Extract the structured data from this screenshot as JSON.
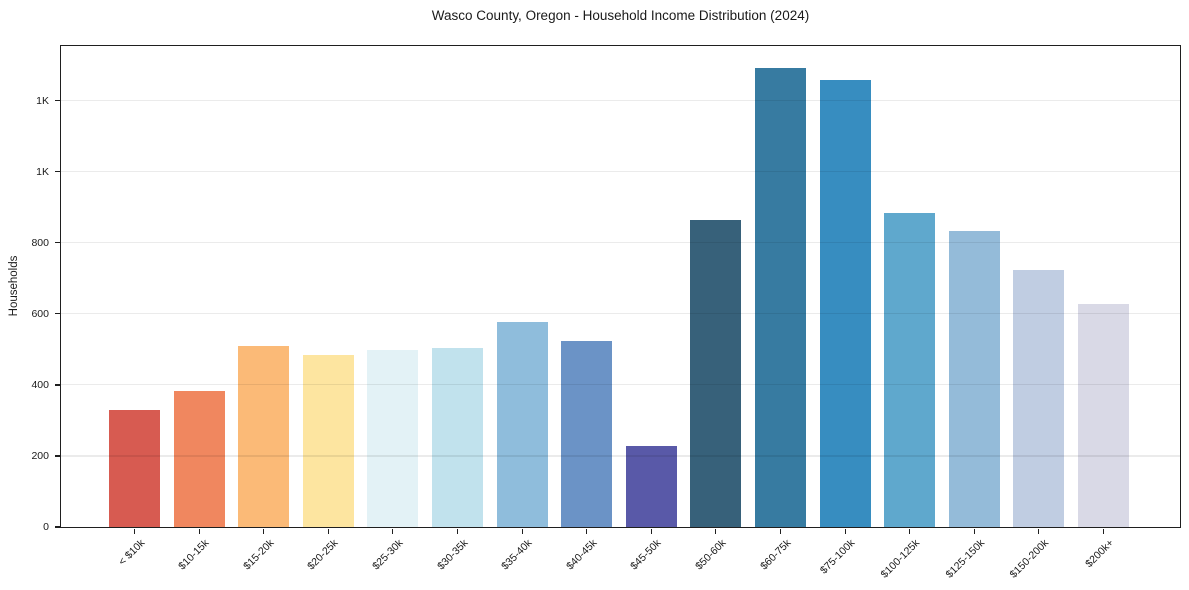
{
  "chart_data": {
    "type": "bar",
    "title": "Wasco County, Oregon - Household Income Distribution (2024)",
    "xlabel": "",
    "ylabel": "Households",
    "categories": [
      "< $10k",
      "$10-15k",
      "$15-20k",
      "$20-25k",
      "$25-30k",
      "$30-35k",
      "$35-40k",
      "$40-45k",
      "$45-50k",
      "$50-60k",
      "$60-75k",
      "$75-100k",
      "$100-125k",
      "$125-150k",
      "$150-200k",
      "$200k+"
    ],
    "values": [
      328,
      382,
      510,
      483,
      499,
      503,
      578,
      525,
      227,
      864,
      1292,
      1258,
      884,
      834,
      724,
      629
    ],
    "bar_colors": [
      "#d75b51",
      "#f0875f",
      "#fbba77",
      "#fde5a0",
      "#e3f2f6",
      "#c1e2ed",
      "#8fbddc",
      "#6b93c6",
      "#5959a8",
      "#37617a",
      "#377ba1",
      "#378dc0",
      "#5fa8cd",
      "#94bbd9",
      "#c0cde2",
      "#d9d9e6"
    ],
    "ylim": [
      0,
      1354
    ],
    "yticks": {
      "values": [
        0,
        200,
        400,
        600,
        800,
        1000,
        1200
      ],
      "labels": [
        "0",
        "200",
        "400",
        "600",
        "800",
        "1K",
        "1K"
      ]
    },
    "grid": "horizontal",
    "legend_position": "none",
    "background_color": "#ffffff",
    "axis_color": "#1f1f1f"
  }
}
